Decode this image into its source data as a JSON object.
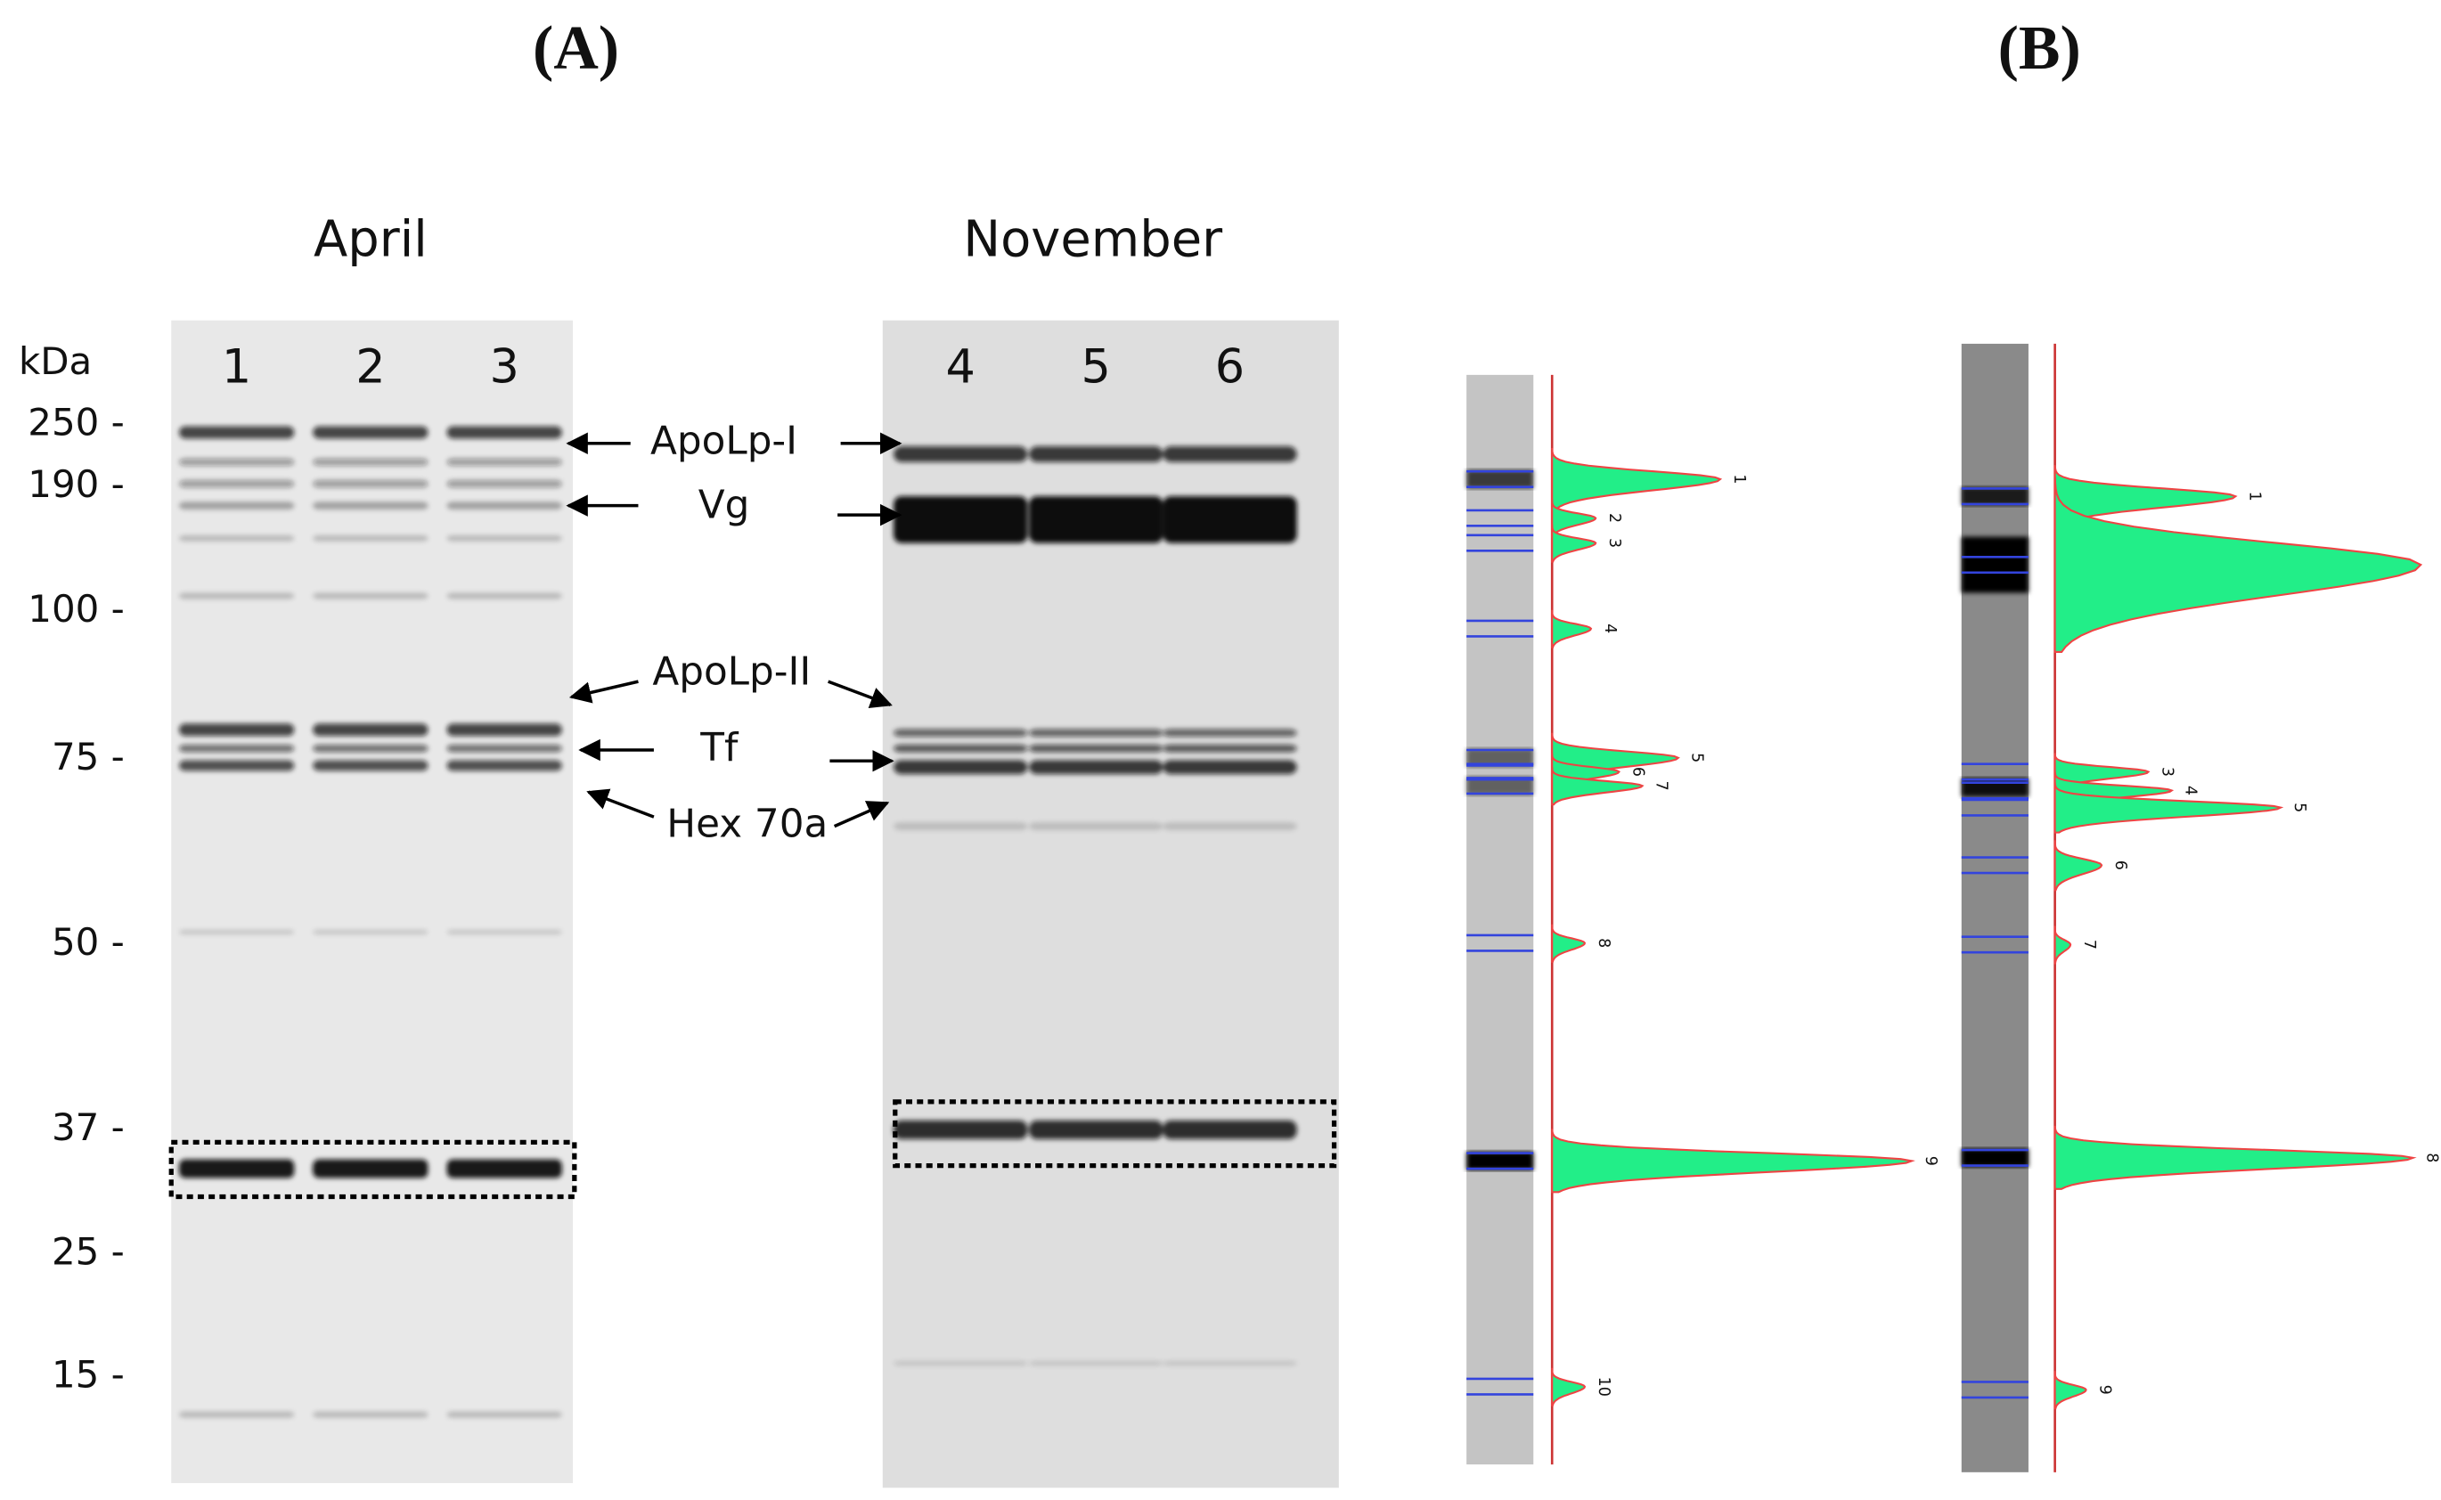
{
  "panels": [
    {
      "label": "(A)"
    },
    {
      "label": "(B)"
    }
  ],
  "gels": [
    {
      "title": "April",
      "lanes": [
        "1",
        "2",
        "3"
      ]
    },
    {
      "title": "November",
      "lanes": [
        "4",
        "5",
        "6"
      ]
    }
  ],
  "marker_unit": "kDa",
  "markers": [
    "250 -",
    "190 -",
    "100 -",
    "75 -",
    "50 -",
    "37 -",
    "25 -",
    "15 -"
  ],
  "proteins": [
    "ApoLp-I",
    "Vg",
    "ApoLp-II",
    "Tf",
    "Hex 70a"
  ],
  "densitograms": [
    {
      "peaks": [
        "1",
        "2",
        "3",
        "4",
        "5",
        "6",
        "7",
        "8",
        "9",
        "10"
      ]
    },
    {
      "peaks": [
        "1",
        "3",
        "4",
        "5",
        "6",
        "7",
        "8",
        "9"
      ]
    }
  ]
}
